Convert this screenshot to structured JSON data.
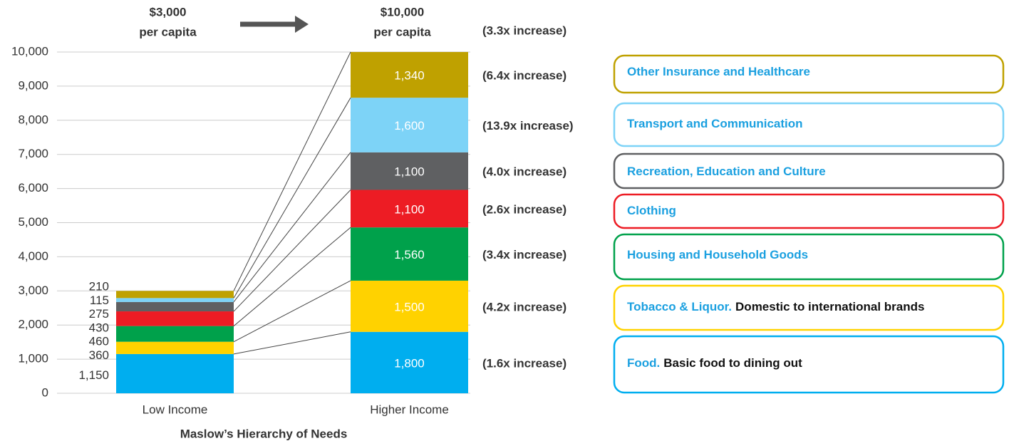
{
  "chart_data": {
    "type": "stacked_bar",
    "categories": [
      "Low Income",
      "Higher Income"
    ],
    "category_headers": [
      [
        "$3,000",
        "per capita"
      ],
      [
        "$10,000",
        "per capita"
      ]
    ],
    "total_increase": "(3.3x increase)",
    "xlabel": "Maslow’s Hierarchy of Needs",
    "ylim": [
      0,
      10000
    ],
    "yticks": [
      0,
      {
        "value": 1000,
        "label": "1,000"
      },
      {
        "value": 2000,
        "label": "2,000"
      },
      {
        "value": 3000,
        "label": "3,000"
      },
      {
        "value": 4000,
        "label": "4,000"
      },
      {
        "value": 5000,
        "label": "5,000"
      },
      {
        "value": 6000,
        "label": "6,000"
      },
      {
        "value": 7000,
        "label": "7,000"
      },
      {
        "value": 8000,
        "label": "8,000"
      },
      {
        "value": 9000,
        "label": "9,000"
      },
      {
        "value": 10000,
        "label": "10,000"
      }
    ],
    "grid": true,
    "series": [
      {
        "name": "Food.",
        "note": "Basic food to dining out",
        "color": "#00aeef",
        "values": [
          1150,
          1800
        ],
        "value_labels": [
          "1,150",
          "1,800"
        ],
        "increase": "(1.6x increase)"
      },
      {
        "name": "Tobacco & Liquor.",
        "note": "Domestic to international brands",
        "color": "#ffd200",
        "values": [
          360,
          1500
        ],
        "value_labels": [
          "360",
          "1,500"
        ],
        "increase": "(4.2x increase)"
      },
      {
        "name": "Housing and Household Goods",
        "color": "#00a14b",
        "values": [
          460,
          1560
        ],
        "value_labels": [
          "460",
          "1,560"
        ],
        "increase": "(3.4x increase)"
      },
      {
        "name": "Clothing",
        "color": "#ed1c24",
        "values": [
          430,
          1100
        ],
        "value_labels": [
          "430",
          "1,100"
        ],
        "increase": "(2.6x increase)"
      },
      {
        "name": "Recreation, Education and Culture",
        "color": "#5f6062",
        "values": [
          275,
          1100
        ],
        "value_labels": [
          "275",
          "1,100"
        ],
        "increase": "(4.0x increase)"
      },
      {
        "name": "Transport and Communication",
        "color": "#7dd3f7",
        "values": [
          115,
          1600
        ],
        "value_labels": [
          "115",
          "1,600"
        ],
        "increase": "(13.9x increase)"
      },
      {
        "name": "Other Insurance and Healthcare",
        "color": "#bfa100",
        "values": [
          210,
          1340
        ],
        "value_labels": [
          "210",
          "1,340"
        ],
        "increase": "(6.4x increase)"
      }
    ]
  }
}
